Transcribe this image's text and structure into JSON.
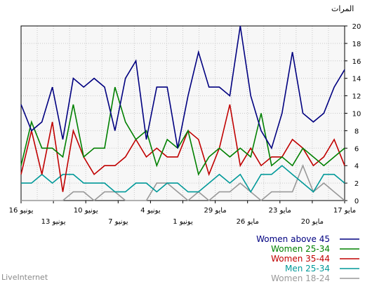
{
  "chart_data": {
    "type": "line",
    "y_unit_label": "المرات",
    "ylim": [
      0,
      20
    ],
    "y_ticks": [
      "0",
      "2",
      "4",
      "6",
      "8",
      "10",
      "12",
      "14",
      "16",
      "18",
      "20"
    ],
    "x_tick_labels": [
      {
        "label": "17 مايو",
        "row": 1
      },
      {
        "label": "20 مايو",
        "row": 2
      },
      {
        "label": "23 مايو",
        "row": 1
      },
      {
        "label": "26 مايو",
        "row": 2
      },
      {
        "label": "29 مايو",
        "row": 1
      },
      {
        "label": "1 يونيو",
        "row": 2
      },
      {
        "label": "4 يونيو",
        "row": 1
      },
      {
        "label": "7 يونيو",
        "row": 2
      },
      {
        "label": "10 يونيو",
        "row": 1
      },
      {
        "label": "13 يونيو",
        "row": 2
      },
      {
        "label": "16 يونيو",
        "row": 1
      }
    ],
    "grid": true,
    "legend_position": "bottom-right",
    "series": [
      {
        "name": "Women above 45",
        "color": "#000080",
        "values": [
          15,
          13,
          10,
          9,
          10,
          17,
          10,
          6,
          8,
          12,
          20,
          12,
          13,
          13,
          17,
          12,
          6,
          13,
          13,
          7,
          16,
          14,
          8,
          13,
          14,
          13,
          14,
          7,
          13,
          9,
          8,
          11
        ]
      },
      {
        "name": "Women 25-34",
        "color": "#008000",
        "values": [
          6,
          5,
          4,
          5,
          6,
          4,
          5,
          4,
          10,
          5,
          6,
          5,
          6,
          5,
          3,
          8,
          6,
          7,
          4,
          8,
          7,
          9,
          13,
          6,
          6,
          5,
          11,
          5,
          6,
          6,
          9,
          4
        ]
      },
      {
        "name": "Women 35-44",
        "color": "#c00000",
        "values": [
          4,
          7,
          5,
          4,
          6,
          7,
          5,
          5,
          4,
          6,
          4,
          11,
          6,
          3,
          7,
          8,
          5,
          5,
          6,
          5,
          7,
          5,
          4,
          4,
          3,
          5,
          8,
          1,
          9,
          3,
          8,
          3
        ]
      },
      {
        "name": "Men 25-34",
        "color": "#009999",
        "values": [
          2,
          3,
          3,
          1,
          2,
          3,
          4,
          3,
          3,
          1,
          3,
          2,
          3,
          2,
          1,
          1,
          2,
          2,
          1,
          2,
          2,
          1,
          1,
          2,
          2,
          2,
          3,
          3,
          2,
          3,
          2,
          2
        ]
      },
      {
        "name": "Women 18-24",
        "color": "#999999",
        "values": [
          0,
          1,
          2,
          1,
          4,
          1,
          1,
          1,
          0,
          1,
          2,
          1,
          1,
          0,
          1,
          0,
          1,
          2,
          2,
          0,
          0,
          0,
          1,
          1,
          0,
          1,
          1,
          0,
          0,
          0,
          0,
          0
        ]
      }
    ]
  },
  "footer": {
    "brand": "LiveInternet"
  }
}
